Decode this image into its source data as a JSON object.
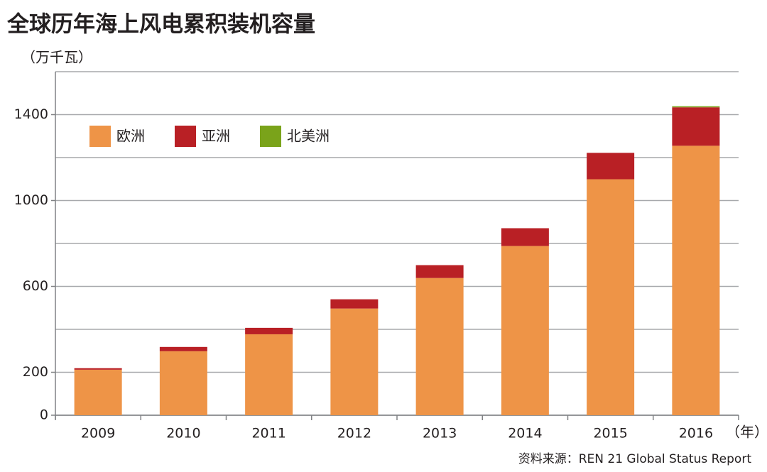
{
  "chart_data": {
    "type": "stacked_bar",
    "title": "全球历年海上风电累积装机容量",
    "y_unit": "（万千瓦）",
    "x_unit": "（年）",
    "source": "资料来源：REN 21 Global Status Report",
    "categories": [
      "2009",
      "2010",
      "2011",
      "2012",
      "2013",
      "2014",
      "2015",
      "2016"
    ],
    "series": [
      {
        "name": "欧洲",
        "color": "#ee9447",
        "values": [
          212,
          298,
          377,
          497,
          639,
          788,
          1099,
          1255
        ]
      },
      {
        "name": "亚洲",
        "color": "#b92025",
        "values": [
          7,
          20,
          30,
          43,
          60,
          83,
          123,
          179
        ]
      },
      {
        "name": "北美洲",
        "color": "#7aa31a",
        "values": [
          0,
          0,
          0,
          0,
          0,
          0,
          0,
          5
        ]
      }
    ],
    "ylim": [
      0,
      1600
    ],
    "yticks": [
      0,
      200,
      600,
      1000,
      1400
    ],
    "grid_ticks": [
      0,
      200,
      400,
      600,
      800,
      1000,
      1200,
      1400,
      1600
    ],
    "grid": true,
    "legend": "upper left"
  }
}
